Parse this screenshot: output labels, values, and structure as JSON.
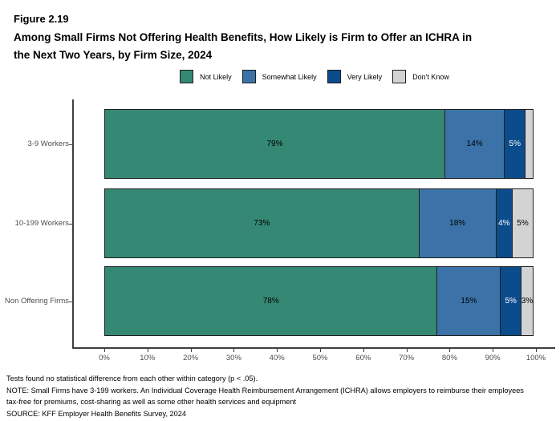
{
  "header": {
    "figure_number": "Figure 2.19",
    "title_line1": "Among Small Firms Not Offering Health Benefits, How Likely is Firm to Offer an ICHRA in",
    "title_line2": "the Next Two Years, by Firm Size, 2024"
  },
  "chart_data": {
    "type": "bar",
    "subtype": "horizontal-stacked",
    "title": "Among Small Firms Not Offering Health Benefits, How Likely is Firm to Offer an ICHRA in the Next Two Years, by Firm Size, 2024",
    "categories": [
      "3-9 Workers",
      "10-199 Workers",
      "Non Offering Firms"
    ],
    "series": [
      {
        "name": "Not Likely",
        "color": "#358873",
        "label_color": "#000000",
        "values": [
          79,
          73,
          78
        ]
      },
      {
        "name": "Somewhat Likely",
        "color": "#3B73A8",
        "label_color": "#000000",
        "values": [
          14,
          18,
          15
        ]
      },
      {
        "name": "Very Likely",
        "color": "#0B4C8C",
        "label_color": "#FFFFFF",
        "values": [
          5,
          4,
          5
        ]
      },
      {
        "name": "Don't Know",
        "color": "#D3D3D3",
        "label_color": "#000000",
        "values": [
          2,
          5,
          3
        ]
      }
    ],
    "value_labels": [
      [
        "79%",
        "14%",
        "5%",
        ""
      ],
      [
        "73%",
        "18%",
        "4%",
        "5%"
      ],
      [
        "78%",
        "15%",
        "5%",
        "3%"
      ]
    ],
    "x_ticks": [
      "0%",
      "10%",
      "20%",
      "30%",
      "40%",
      "50%",
      "60%",
      "70%",
      "80%",
      "90%",
      "100%"
    ],
    "xlim": [
      0,
      100
    ],
    "legend_position": "top-center",
    "grid": false,
    "axis_color": "#3f3f3f"
  },
  "notes": {
    "lines": [
      "Tests found no statistical difference from each other within category (p < .05).",
      "NOTE: Small Firms have 3-199 workers. An Individual Coverage Health Reimbursement Arrangement (ICHRA) allows employers to reimburse their employees",
      "tax-free for premiums, cost-sharing as well as some other health services and equipment",
      "SOURCE: KFF Employer Health Benefits Survey, 2024"
    ]
  }
}
